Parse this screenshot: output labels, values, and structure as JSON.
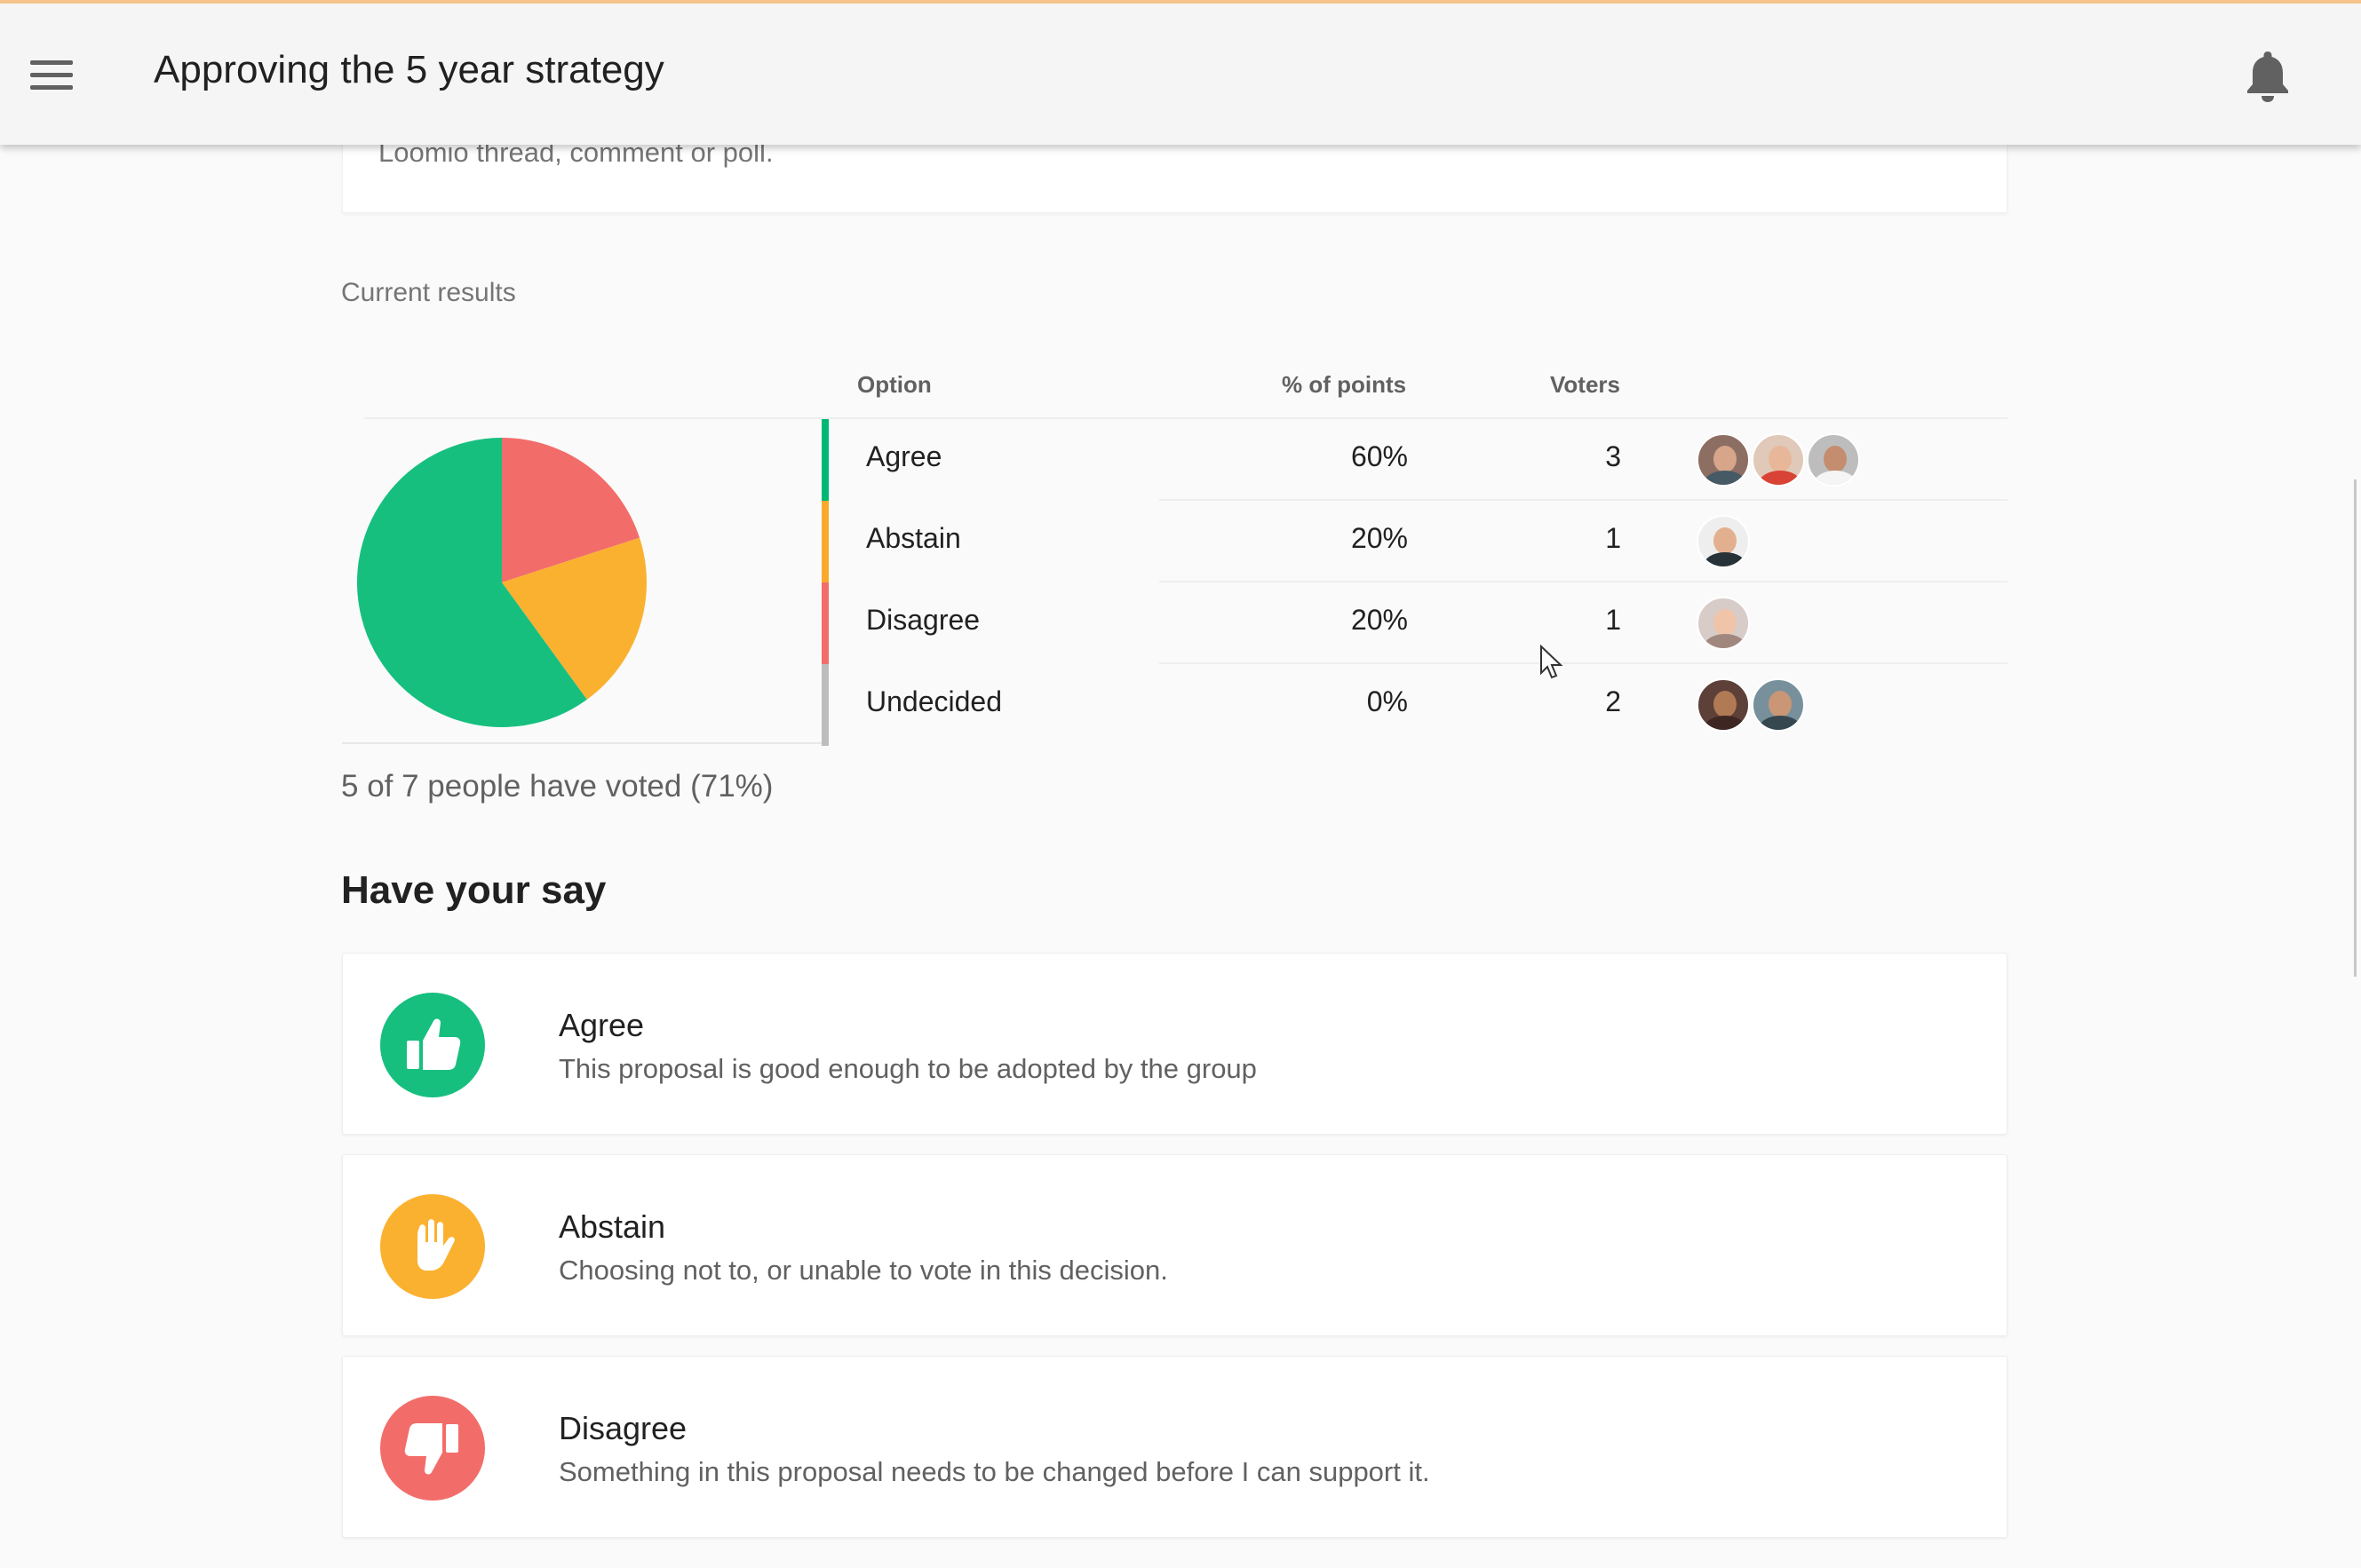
{
  "header": {
    "title": "Approving the 5 year strategy",
    "menu_icon": "hamburger-menu-icon",
    "notifications_icon": "bell-icon"
  },
  "top_card": {
    "text": "Loomio thread, comment or poll."
  },
  "results": {
    "section_label": "Current results",
    "columns": {
      "option": "Option",
      "percent": "% of points",
      "voters": "Voters"
    },
    "rows": [
      {
        "label": "Agree",
        "percent": "60%",
        "voters": "3",
        "color": "#00b875",
        "avatar_count": 3
      },
      {
        "label": "Abstain",
        "percent": "20%",
        "voters": "1",
        "color": "#f8ab2b",
        "avatar_count": 1
      },
      {
        "label": "Disagree",
        "percent": "20%",
        "voters": "1",
        "color": "#f26d6a",
        "avatar_count": 1
      },
      {
        "label": "Undecided",
        "percent": "0%",
        "voters": "2",
        "color": "#bdbdbd",
        "avatar_count": 2
      }
    ],
    "summary": "5 of 7 people have voted (71%)"
  },
  "chart_data": {
    "type": "pie",
    "categories": [
      "Agree",
      "Abstain",
      "Disagree"
    ],
    "values": [
      60,
      20,
      20
    ],
    "colors": [
      "#17bf7f",
      "#fbb130",
      "#f26d6a"
    ],
    "legend": "table-right"
  },
  "have_your_say": {
    "title": "Have your say",
    "options": [
      {
        "title": "Agree",
        "description": "This proposal is good enough to be adopted by the group",
        "color": "#17bf7f",
        "icon": "thumbs-up-icon"
      },
      {
        "title": "Abstain",
        "description": "Choosing not to, or unable to vote in this decision.",
        "color": "#fbb130",
        "icon": "hand-stop-icon"
      },
      {
        "title": "Disagree",
        "description": "Something in this proposal needs to be changed before I can support it.",
        "color": "#f26d6a",
        "icon": "thumbs-down-icon"
      }
    ]
  }
}
